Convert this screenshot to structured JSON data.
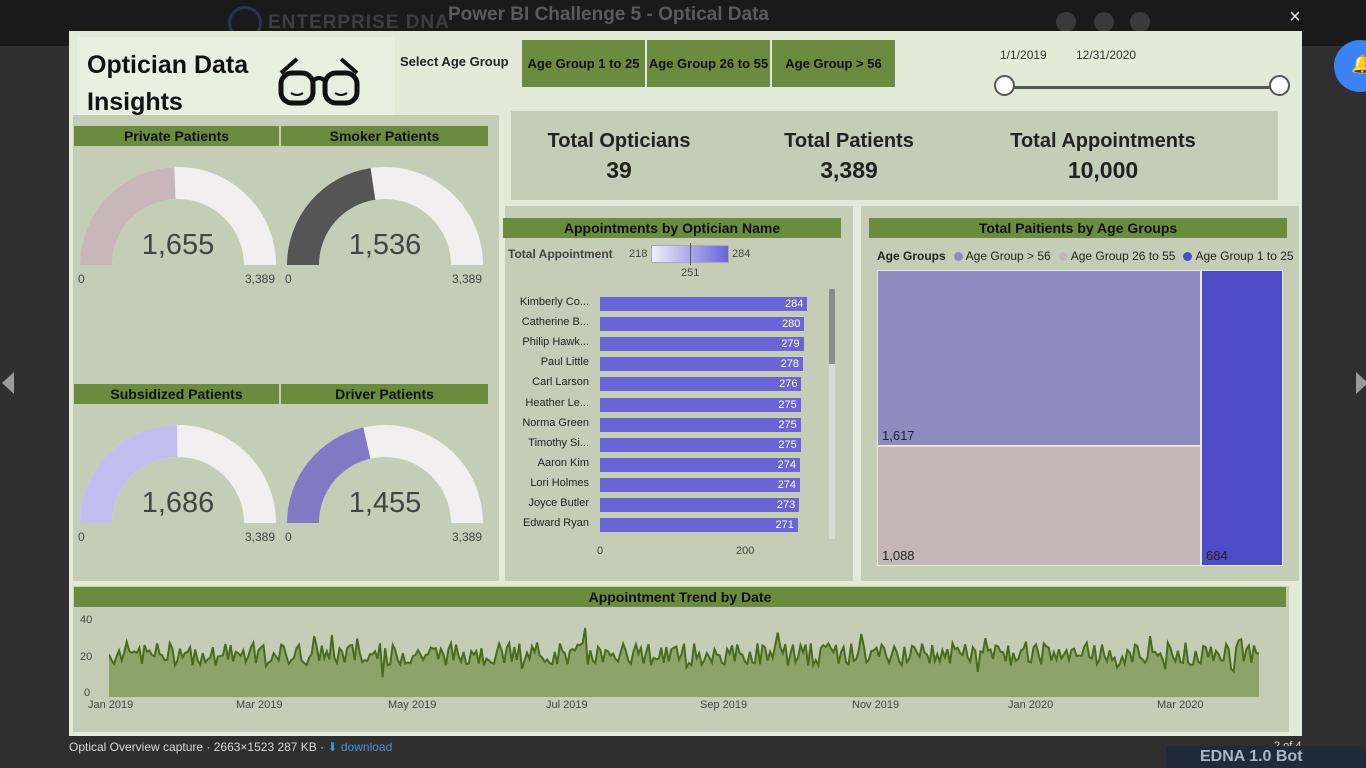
{
  "background": {
    "brand": "ENTERPRISE DNA",
    "header_title": "Power BI Challenge 5 - Optical Data",
    "close_icon": "×"
  },
  "footer": {
    "caption": "Optical Overview capture · 2663×1523 287 KB · ",
    "download_label": "download",
    "page_counter": "2 of 4",
    "bot_label": "EDNA 1.0 Bot"
  },
  "report": {
    "title": "Optician Data Insights",
    "age_slicer": {
      "label": "Select Age Group",
      "options": [
        "Age Group 1 to 25",
        "Age Group 26 to 55",
        "Age Group > 56"
      ]
    },
    "date_range": {
      "start": "1/1/2019",
      "end": "12/31/2020"
    },
    "gauges": [
      {
        "title": "Private Patients",
        "value": "1,655",
        "min": "0",
        "max": "3,389",
        "fraction": 0.488,
        "color": "#c9b6b8"
      },
      {
        "title": "Smoker Patients",
        "value": "1,536",
        "min": "0",
        "max": "3,389",
        "fraction": 0.453,
        "color": "#555555"
      },
      {
        "title": "Subsidized Patients",
        "value": "1,686",
        "min": "0",
        "max": "3,389",
        "fraction": 0.497,
        "color": "#c0bff0"
      },
      {
        "title": "Driver Patients",
        "value": "1,455",
        "min": "0",
        "max": "3,389",
        "fraction": 0.429,
        "color": "#7f7ac4"
      }
    ],
    "kpis": [
      {
        "label": "Total Opticians",
        "value": "39"
      },
      {
        "label": "Total Patients",
        "value": "3,389"
      },
      {
        "label": "Total Appointments",
        "value": "10,000"
      }
    ],
    "opticians": {
      "title": "Appointments by Optician Name",
      "legend_label": "Total Appointment",
      "legend_min": "218",
      "legend_max": "284",
      "legend_mid": "251",
      "axis_ticks": [
        "0",
        "200"
      ],
      "rows": [
        {
          "name": "Kimberly Co...",
          "value": 284
        },
        {
          "name": "Catherine B...",
          "value": 280
        },
        {
          "name": "Philip Hawk...",
          "value": 279
        },
        {
          "name": "Paul Little",
          "value": 278
        },
        {
          "name": "Carl Larson",
          "value": 276
        },
        {
          "name": "Heather Le...",
          "value": 275
        },
        {
          "name": "Norma Green",
          "value": 275
        },
        {
          "name": "Timothy Si...",
          "value": 275
        },
        {
          "name": "Aaron Kim",
          "value": 274
        },
        {
          "name": "Lori Holmes",
          "value": 274
        },
        {
          "name": "Joyce Butler",
          "value": 273
        },
        {
          "name": "Edward Ryan",
          "value": 271
        }
      ]
    },
    "age_groups": {
      "title": "Total Paitients by Age Groups",
      "legend_title": "Age Groups",
      "items": [
        {
          "name": "Age Group > 56",
          "value": "1,617",
          "color": "#8e8bc0"
        },
        {
          "name": "Age Group 26 to 55",
          "value": "1,088",
          "color": "#c4b5b6"
        },
        {
          "name": "Age Group 1 to 25",
          "value": "684",
          "color": "#4e4bc7"
        }
      ]
    },
    "trend": {
      "title": "Appointment Trend by Date",
      "y_ticks": [
        "40",
        "20",
        "0"
      ],
      "x_ticks": [
        "Jan 2019",
        "Mar 2019",
        "May 2019",
        "Jul 2019",
        "Sep 2019",
        "Nov 2019",
        "Jan 2020",
        "Mar 2020"
      ],
      "line_color": "#4a6b1e",
      "fill_color": "#8ea36a"
    }
  },
  "chart_data": {
    "type": "line",
    "title": "Appointment Trend by Date",
    "x_range": [
      "2019-01-01",
      "2020-03-31"
    ],
    "ylim": [
      0,
      40
    ],
    "series": [
      {
        "values_approx_mean": 22,
        "values_approx_range": [
          13,
          37
        ]
      }
    ]
  }
}
